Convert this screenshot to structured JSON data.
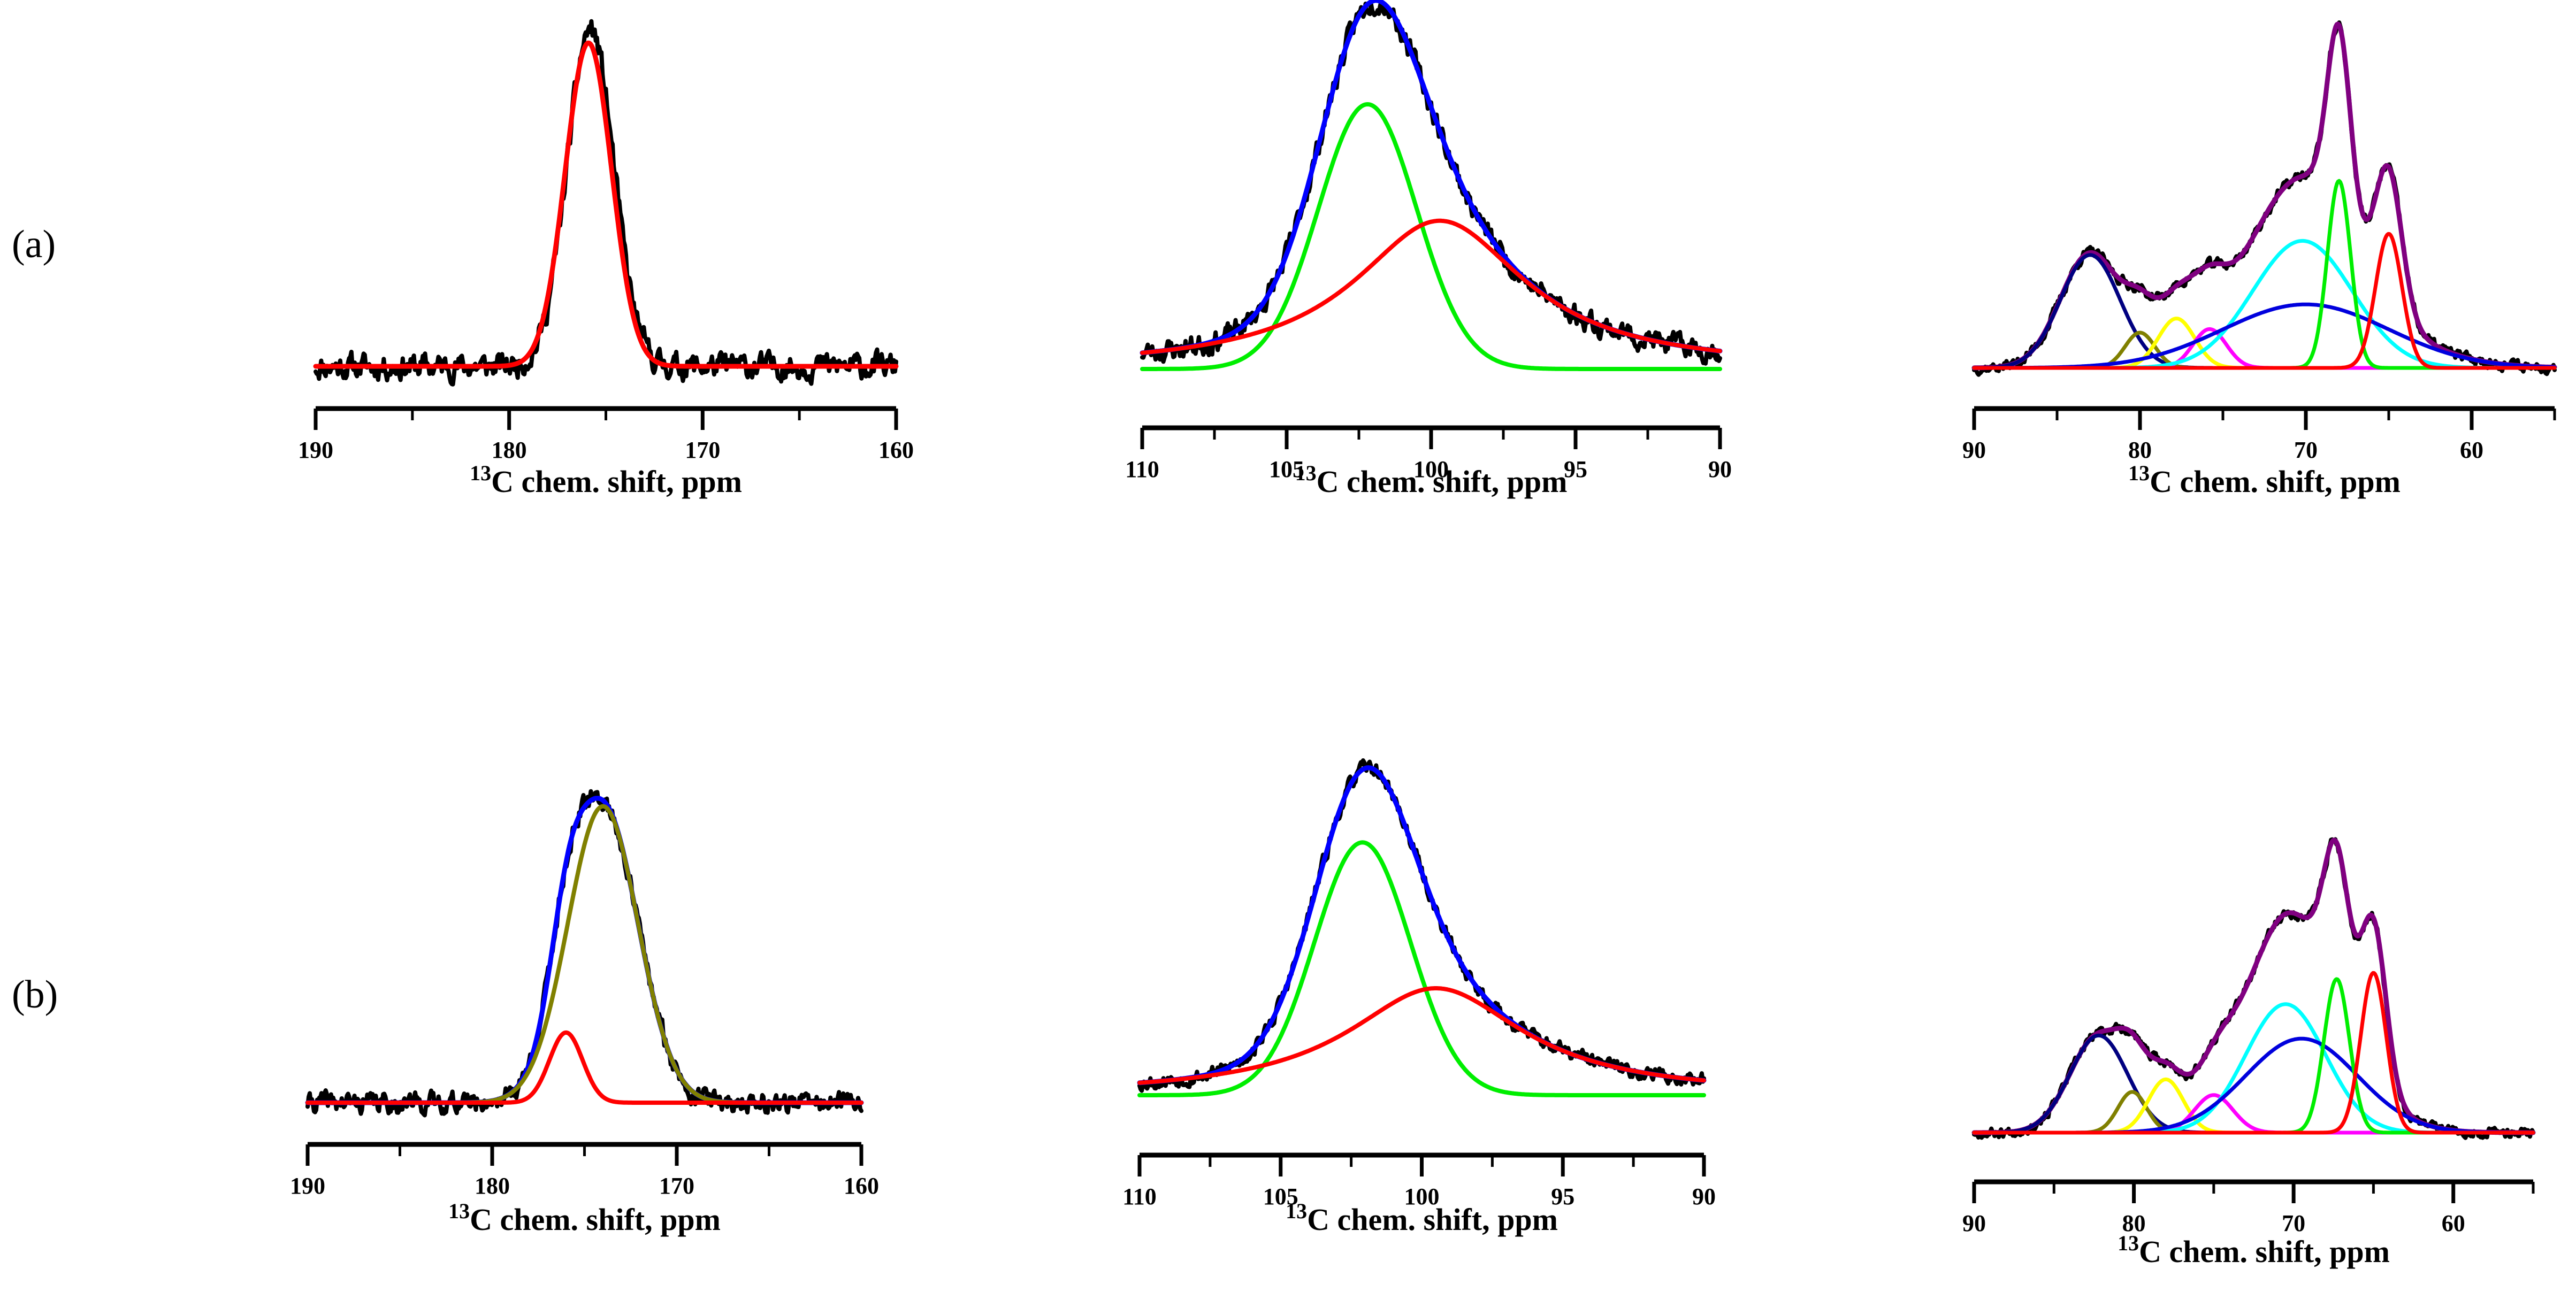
{
  "row_labels": [
    "(a)",
    "(b)"
  ],
  "colors": {
    "experimental": "#000000",
    "total_fit": "#0000ff",
    "total_fit_c2_c6": "#800080",
    "red": "#ff0000",
    "green": "#00ee00",
    "olive": "#808000",
    "yellow": "#ffff00",
    "magenta": "#ff00ff",
    "cyan": "#00ffff",
    "blue": "#0000dd",
    "navy": "#000080"
  },
  "chart_data": [
    {
      "id": "a-carbonyl",
      "row": "(a)",
      "type": "line",
      "xlabel_sup": "13",
      "xlabel": "C chem. shift, ppm",
      "xlim": [
        190,
        160
      ],
      "x_reversed": true,
      "xticks": [
        190,
        180,
        170,
        160
      ],
      "minor_step": 5,
      "series": [
        {
          "color": "#000000",
          "width": 8,
          "noise": 0.03,
          "seed": 11,
          "components": [
            {
              "c": 175.8,
              "a": 1.0,
              "w": 1.2
            }
          ]
        },
        {
          "color": "#ff0000",
          "width": 9,
          "components": [
            {
              "c": 175.9,
              "a": 0.96,
              "w": 1.2
            }
          ]
        }
      ]
    },
    {
      "id": "a-c1",
      "row": "(a)",
      "type": "line",
      "xlabel_sup": "13",
      "xlabel": "C chem. shift, ppm",
      "xlim": [
        110,
        90
      ],
      "x_reversed": true,
      "xticks": [
        110,
        105,
        100,
        95,
        90
      ],
      "minor_step": 2.5,
      "series": [
        {
          "color": "#000000",
          "width": 8,
          "noise": 0.025,
          "seed": 23,
          "components": [
            {
              "c": 102.2,
              "a": 0.75,
              "w": 1.7
            },
            {
              "c": 99.7,
              "a": 0.42,
              "w": 3.6,
              "lor": true
            }
          ]
        },
        {
          "color": "#0000ff",
          "width": 9,
          "components": [
            {
              "c": 102.2,
              "a": 0.75,
              "w": 1.7
            },
            {
              "c": 99.7,
              "a": 0.42,
              "w": 3.6,
              "lor": true
            }
          ]
        },
        {
          "color": "#00ee00",
          "width": 8,
          "components": [
            {
              "c": 102.2,
              "a": 0.75,
              "w": 1.7
            }
          ]
        },
        {
          "color": "#ff0000",
          "width": 8,
          "components": [
            {
              "c": 99.7,
              "a": 0.42,
              "w": 3.6,
              "lor": true
            }
          ]
        }
      ]
    },
    {
      "id": "a-c2c6",
      "row": "(a)",
      "type": "line",
      "xlabel_sup": "13",
      "xlabel": "C chem. shift, ppm",
      "xlim": [
        90,
        55
      ],
      "x_reversed": true,
      "xticks": [
        90,
        80,
        70,
        60
      ],
      "minor_step": 5,
      "series": [
        {
          "color": "#000000",
          "width": 8,
          "noise": 0.012,
          "seed": 37,
          "components": [
            {
              "c": 83.0,
              "a": 0.32,
              "w": 1.8
            },
            {
              "c": 80.0,
              "a": 0.1,
              "w": 0.9
            },
            {
              "c": 77.8,
              "a": 0.14,
              "w": 1.1
            },
            {
              "c": 75.8,
              "a": 0.11,
              "w": 1.0
            },
            {
              "c": 70.2,
              "a": 0.36,
              "w": 3.0
            },
            {
              "c": 70.0,
              "a": 0.18,
              "w": 5.0
            },
            {
              "c": 68.0,
              "a": 0.53,
              "w": 0.7
            },
            {
              "c": 65.0,
              "a": 0.38,
              "w": 0.8
            }
          ]
        },
        {
          "color": "#800080",
          "width": 9,
          "components": [
            {
              "c": 83.0,
              "a": 0.32,
              "w": 1.8
            },
            {
              "c": 80.0,
              "a": 0.1,
              "w": 0.9
            },
            {
              "c": 77.8,
              "a": 0.14,
              "w": 1.1
            },
            {
              "c": 75.8,
              "a": 0.11,
              "w": 1.0
            },
            {
              "c": 70.2,
              "a": 0.36,
              "w": 3.0
            },
            {
              "c": 70.0,
              "a": 0.18,
              "w": 5.0
            },
            {
              "c": 68.0,
              "a": 0.53,
              "w": 0.7
            },
            {
              "c": 65.0,
              "a": 0.38,
              "w": 0.8
            }
          ]
        },
        {
          "color": "#000080",
          "width": 7,
          "components": [
            {
              "c": 83.0,
              "a": 0.32,
              "w": 1.8
            }
          ]
        },
        {
          "color": "#808000",
          "width": 7,
          "components": [
            {
              "c": 80.0,
              "a": 0.1,
              "w": 0.9
            }
          ]
        },
        {
          "color": "#ffff00",
          "width": 7,
          "components": [
            {
              "c": 77.8,
              "a": 0.14,
              "w": 1.1
            }
          ]
        },
        {
          "color": "#ff00ff",
          "width": 7,
          "components": [
            {
              "c": 75.8,
              "a": 0.11,
              "w": 1.0
            }
          ]
        },
        {
          "color": "#00ffff",
          "width": 7,
          "components": [
            {
              "c": 70.2,
              "a": 0.36,
              "w": 3.0
            }
          ]
        },
        {
          "color": "#0000dd",
          "width": 7,
          "components": [
            {
              "c": 70.0,
              "a": 0.18,
              "w": 5.0
            }
          ]
        },
        {
          "color": "#00ee00",
          "width": 7,
          "components": [
            {
              "c": 68.0,
              "a": 0.53,
              "w": 0.7
            }
          ]
        },
        {
          "color": "#ff0000",
          "width": 7,
          "components": [
            {
              "c": 65.0,
              "a": 0.38,
              "w": 0.8
            }
          ]
        }
      ]
    },
    {
      "id": "b-carbonyl",
      "row": "(b)",
      "type": "line",
      "xlabel_sup": "13",
      "xlabel": "C chem. shift, ppm",
      "xlim": [
        190,
        160
      ],
      "x_reversed": true,
      "xticks": [
        190,
        180,
        170,
        160
      ],
      "minor_step": 5,
      "series": [
        {
          "color": "#000000",
          "width": 8,
          "noise": 0.025,
          "seed": 41,
          "components": [
            {
              "c": 176.0,
              "a": 0.22,
              "w": 0.9
            },
            {
              "c": 174.0,
              "a": 0.93,
              "w": 1.9
            }
          ]
        },
        {
          "color": "#0000ff",
          "width": 9,
          "components": [
            {
              "c": 176.0,
              "a": 0.22,
              "w": 0.9
            },
            {
              "c": 174.0,
              "a": 0.93,
              "w": 1.9
            }
          ]
        },
        {
          "color": "#808000",
          "width": 8,
          "components": [
            {
              "c": 174.0,
              "a": 0.93,
              "w": 1.9
            }
          ]
        },
        {
          "color": "#ff0000",
          "width": 8,
          "components": [
            {
              "c": 176.0,
              "a": 0.22,
              "w": 0.9
            }
          ]
        }
      ]
    },
    {
      "id": "b-c1",
      "row": "(b)",
      "type": "line",
      "xlabel_sup": "13",
      "xlabel": "C chem. shift, ppm",
      "xlim": [
        110,
        90
      ],
      "x_reversed": true,
      "xticks": [
        110,
        105,
        100,
        95,
        90
      ],
      "minor_step": 2.5,
      "series": [
        {
          "color": "#000000",
          "width": 8,
          "noise": 0.018,
          "seed": 53,
          "components": [
            {
              "c": 102.1,
              "a": 0.78,
              "w": 1.7
            },
            {
              "c": 99.5,
              "a": 0.33,
              "w": 3.8,
              "lor": true
            }
          ]
        },
        {
          "color": "#0000ff",
          "width": 9,
          "components": [
            {
              "c": 102.1,
              "a": 0.78,
              "w": 1.7
            },
            {
              "c": 99.5,
              "a": 0.33,
              "w": 3.8,
              "lor": true
            }
          ]
        },
        {
          "color": "#00ee00",
          "width": 8,
          "components": [
            {
              "c": 102.1,
              "a": 0.78,
              "w": 1.7
            }
          ]
        },
        {
          "color": "#ff0000",
          "width": 8,
          "components": [
            {
              "c": 99.5,
              "a": 0.33,
              "w": 3.8,
              "lor": true
            }
          ]
        }
      ]
    },
    {
      "id": "b-c2c6",
      "row": "(b)",
      "type": "line",
      "xlabel_sup": "13",
      "xlabel": "C chem. shift, ppm",
      "xlim": [
        90,
        55
      ],
      "x_reversed": true,
      "xticks": [
        90,
        80,
        70,
        60
      ],
      "minor_step": 5,
      "series": [
        {
          "color": "#000000",
          "width": 8,
          "noise": 0.012,
          "seed": 67,
          "components": [
            {
              "c": 82.2,
              "a": 0.31,
              "w": 1.8
            },
            {
              "c": 80.1,
              "a": 0.13,
              "w": 0.9
            },
            {
              "c": 78.0,
              "a": 0.17,
              "w": 1.1
            },
            {
              "c": 75.0,
              "a": 0.12,
              "w": 1.2
            },
            {
              "c": 70.5,
              "a": 0.41,
              "w": 2.5
            },
            {
              "c": 69.5,
              "a": 0.3,
              "w": 3.5
            },
            {
              "c": 67.3,
              "a": 0.49,
              "w": 0.8
            },
            {
              "c": 65.0,
              "a": 0.51,
              "w": 0.8
            }
          ]
        },
        {
          "color": "#800080",
          "width": 9,
          "components": [
            {
              "c": 82.2,
              "a": 0.31,
              "w": 1.8
            },
            {
              "c": 80.1,
              "a": 0.13,
              "w": 0.9
            },
            {
              "c": 78.0,
              "a": 0.17,
              "w": 1.1
            },
            {
              "c": 75.0,
              "a": 0.12,
              "w": 1.2
            },
            {
              "c": 70.5,
              "a": 0.41,
              "w": 2.5
            },
            {
              "c": 69.5,
              "a": 0.3,
              "w": 3.5
            },
            {
              "c": 67.3,
              "a": 0.49,
              "w": 0.8
            },
            {
              "c": 65.0,
              "a": 0.51,
              "w": 0.8
            }
          ]
        },
        {
          "color": "#000080",
          "width": 7,
          "components": [
            {
              "c": 82.2,
              "a": 0.31,
              "w": 1.8
            }
          ]
        },
        {
          "color": "#808000",
          "width": 7,
          "components": [
            {
              "c": 80.1,
              "a": 0.13,
              "w": 0.9
            }
          ]
        },
        {
          "color": "#ffff00",
          "width": 7,
          "components": [
            {
              "c": 78.0,
              "a": 0.17,
              "w": 1.1
            }
          ]
        },
        {
          "color": "#ff00ff",
          "width": 7,
          "components": [
            {
              "c": 75.0,
              "a": 0.12,
              "w": 1.2
            }
          ]
        },
        {
          "color": "#00ffff",
          "width": 7,
          "components": [
            {
              "c": 70.5,
              "a": 0.41,
              "w": 2.5
            }
          ]
        },
        {
          "color": "#0000dd",
          "width": 7,
          "components": [
            {
              "c": 69.5,
              "a": 0.3,
              "w": 3.5
            }
          ]
        },
        {
          "color": "#00ee00",
          "width": 7,
          "components": [
            {
              "c": 67.3,
              "a": 0.49,
              "w": 0.8
            }
          ]
        },
        {
          "color": "#ff0000",
          "width": 7,
          "components": [
            {
              "c": 65.0,
              "a": 0.51,
              "w": 0.8
            }
          ]
        }
      ]
    }
  ]
}
